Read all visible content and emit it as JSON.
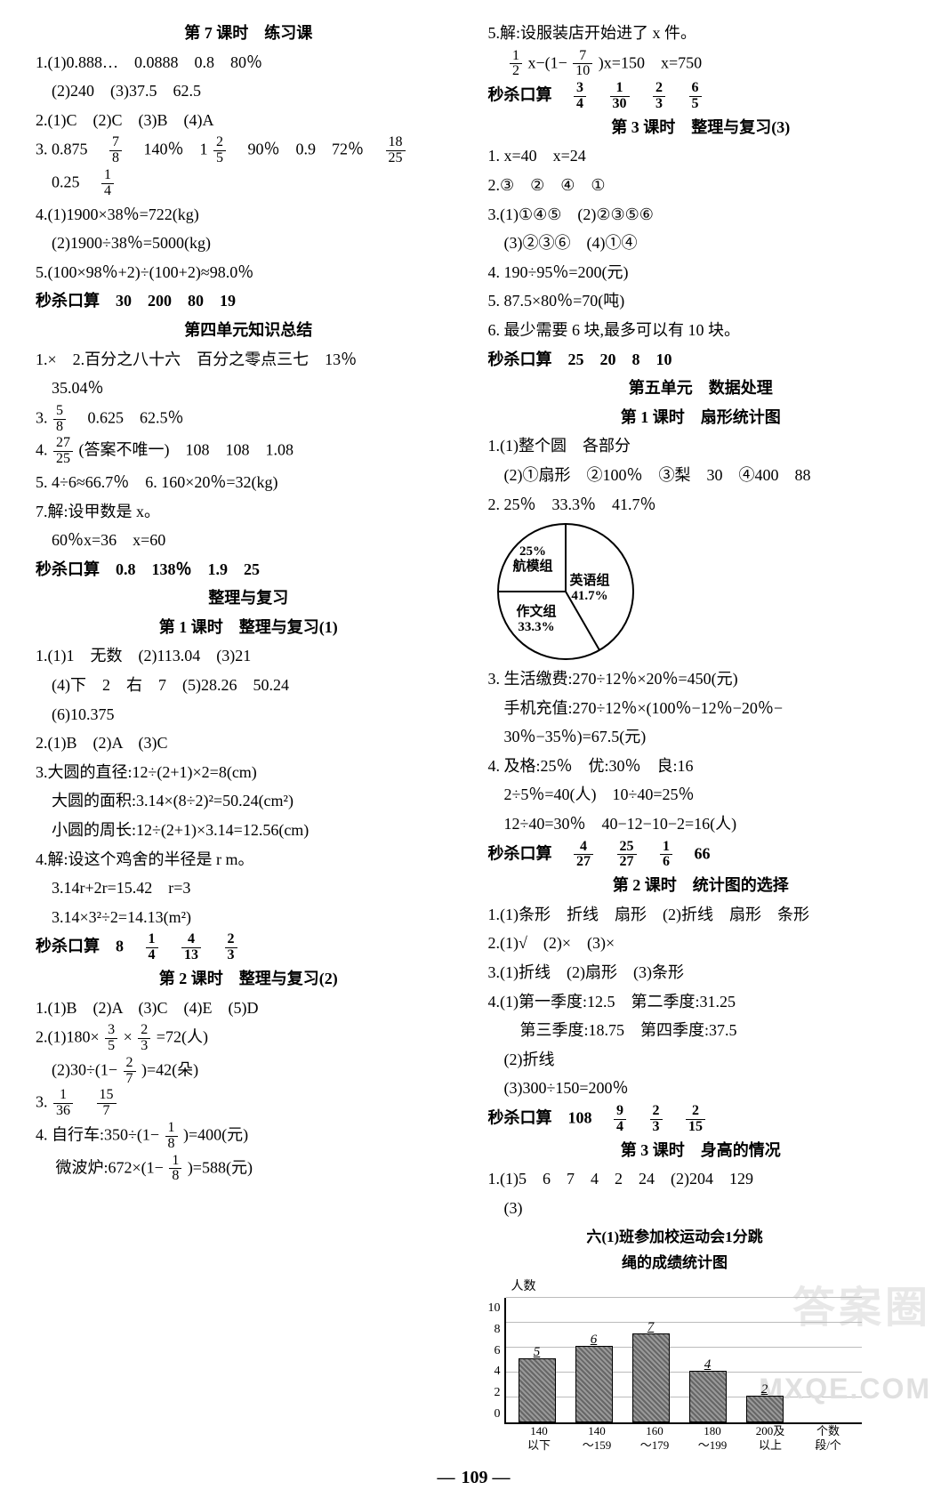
{
  "left": {
    "h1": "第 7 课时　练习课",
    "l1": "1.(1)0.888…　0.0888　0.8　80％",
    "l2": "　(2)240　(3)37.5　62.5",
    "l3": "2.(1)C　(2)C　(3)B　(4)A",
    "l3a_a": "3. 0.875　",
    "l3a_f1n": "7",
    "l3a_f1d": "8",
    "l3a_b": "　140％　1",
    "l3a_f2n": "2",
    "l3a_f2d": "5",
    "l3a_c": "　90％　0.9　72％　",
    "l3a_f3n": "18",
    "l3a_f3d": "25",
    "l3b_a": "　0.25　",
    "l3b_fn": "1",
    "l3b_fd": "4",
    "l4": "4.(1)1900×38％=722(kg)",
    "l5": "　(2)1900÷38％=5000(kg)",
    "l6": "5.(100×98％+2)÷(100+2)≈98.0％",
    "l7": "秒杀口算　30　200　80　19",
    "h2": "第四单元知识总结",
    "l8": "1.×　2.百分之八十六　百分之零点三七　13％",
    "l9": "　35.04％",
    "l10a": "3.",
    "l10fn": "5",
    "l10fd": "8",
    "l10b": "　0.625　62.5％",
    "l11a": "4.",
    "l11fn": "27",
    "l11fd": "25",
    "l11b": "(答案不唯一)　108　108　1.08",
    "l12": "5. 4÷6≈66.7％　6. 160×20％=32(kg)",
    "l13": "7.解:设甲数是 x。",
    "l14": "　60％x=36　x=60",
    "l15": "秒杀口算　0.8　138％　1.9　25",
    "h3": "整理与复习",
    "h3b": "第 1 课时　整理与复习(1)",
    "l16": "1.(1)1　无数　(2)113.04　(3)21",
    "l17": "　(4)下　2　右　7　(5)28.26　50.24",
    "l18": "　(6)10.375",
    "l19": "2.(1)B　(2)A　(3)C",
    "l20": "3.大圆的直径:12÷(2+1)×2=8(cm)",
    "l21": "　大圆的面积:3.14×(8÷2)²=50.24(cm²)",
    "l22": "　小圆的周长:12÷(2+1)×3.14=12.56(cm)",
    "l23": "4.解:设这个鸡舍的半径是 r m。",
    "l24": "　3.14r+2r=15.42　r=3",
    "l25": "　3.14×3²÷2=14.13(m²)",
    "l26a": "秒杀口算　8　",
    "l26f1n": "1",
    "l26f1d": "4",
    "l26f2n": "4",
    "l26f2d": "13",
    "l26f3n": "2",
    "l26f3d": "3",
    "h4": "第 2 课时　整理与复习(2)",
    "l27": "1.(1)B　(2)A　(3)C　(4)E　(5)D",
    "l28a": "2.(1)180×",
    "l28f1n": "3",
    "l28f1d": "5",
    "l28b": "×",
    "l28f2n": "2",
    "l28f2d": "3",
    "l28c": "=72(人)",
    "l29a": "　(2)30÷(1−",
    "l29fn": "2",
    "l29fd": "7",
    "l29b": ")=42(朵)",
    "l30a": "3.",
    "l30f1n": "1",
    "l30f1d": "36",
    "l30f2n": "15",
    "l30f2d": "7",
    "l31a": "4. 自行车:350÷(1−",
    "l31fn": "1",
    "l31fd": "8",
    "l31b": ")=400(元)",
    "l32a": "　 微波炉:672×(1−",
    "l32fn": "1",
    "l32fd": "8",
    "l32b": ")=588(元)"
  },
  "right": {
    "l1": "5.解:设服装店开始进了 x 件。",
    "l2a": "　",
    "l2f1n": "1",
    "l2f1d": "2",
    "l2b": "x−(1−",
    "l2f2n": "7",
    "l2f2d": "10",
    "l2c": ")x=150　x=750",
    "l3a": "秒杀口算　",
    "l3f1n": "3",
    "l3f1d": "4",
    "l3f2n": "1",
    "l3f2d": "30",
    "l3f3n": "2",
    "l3f3d": "3",
    "l3f4n": "6",
    "l3f4d": "5",
    "h1": "第 3 课时　整理与复习(3)",
    "l4": "1. x=40　x=24",
    "l5": "2.③　②　④　①",
    "l6": "3.(1)①④⑤　(2)②③⑤⑥",
    "l7": "　(3)②③⑥　(4)①④",
    "l8": "4. 190÷95％=200(元)",
    "l9": "5. 87.5×80％=70(吨)",
    "l10": "6. 最少需要 6 块,最多可以有 10 块。",
    "l11": "秒杀口算　25　20　8　10",
    "h2": "第五单元　数据处理",
    "h2b": "第 1 课时　扇形统计图",
    "l12": "1.(1)整个圆　各部分",
    "l13": "　(2)①扇形　②100％　③梨　30　④400　88",
    "l14": "2. 25％　33.3％　41.7％",
    "pie": {
      "slices": [
        {
          "label": "英语组\n41.7%",
          "start": 0,
          "color": "#ffffff"
        },
        {
          "label": "作文组\n33.3%",
          "start": 150,
          "color": "#ffffff"
        },
        {
          "label": "25%\n航模组",
          "start": 270,
          "color": "#ffffff"
        }
      ]
    },
    "l15": "3. 生活缴费:270÷12％×20％=450(元)",
    "l16": "　手机充值:270÷12％×(100％−12％−20％−",
    "l17": "　30％−35％)=67.5(元)",
    "l18": "4. 及格:25％　优:30％　良:16",
    "l19": "　2÷5％=40(人)　10÷40=25％",
    "l20": "　12÷40=30％　40−12−10−2=16(人)",
    "l21a": "秒杀口算　",
    "l21f1n": "4",
    "l21f1d": "27",
    "l21f2n": "25",
    "l21f2d": "27",
    "l21f3n": "1",
    "l21f3d": "6",
    "l21b": "　66",
    "h3": "第 2 课时　统计图的选择",
    "l22": "1.(1)条形　折线　扇形　(2)折线　扇形　条形",
    "l23": "2.(1)√　(2)×　(3)×",
    "l24": "3.(1)折线　(2)扇形　(3)条形",
    "l25": "4.(1)第一季度:12.5　第二季度:31.25",
    "l26": "　　第三季度:18.75　第四季度:37.5",
    "l27": "　(2)折线",
    "l28": "　(3)300÷150=200％",
    "l29a": "秒杀口算　108　",
    "l29f1n": "9",
    "l29f1d": "4",
    "l29f2n": "2",
    "l29f2d": "3",
    "l29f3n": "2",
    "l29f3d": "15",
    "h4": "第 3 课时　身高的情况",
    "l30": "1.(1)5　6　7　4　2　24　(2)204　129",
    "l31": "　(3)",
    "bar": {
      "title": "六(1)班参加校运动会1分跳\n绳的成绩统计图",
      "ylabel": "人数",
      "ymax": 10,
      "ystep": 2,
      "categories": [
        "140\n以下",
        "140\n～159",
        "160\n～179",
        "180\n～199",
        "200及\n以上"
      ],
      "xextra": "个数\n段/个",
      "values": [
        5,
        6,
        7,
        4,
        2
      ],
      "bar_color": "#888888"
    }
  },
  "pagenum": "109",
  "watermark": "答案圈",
  "watermark2": "MXQE.COM"
}
